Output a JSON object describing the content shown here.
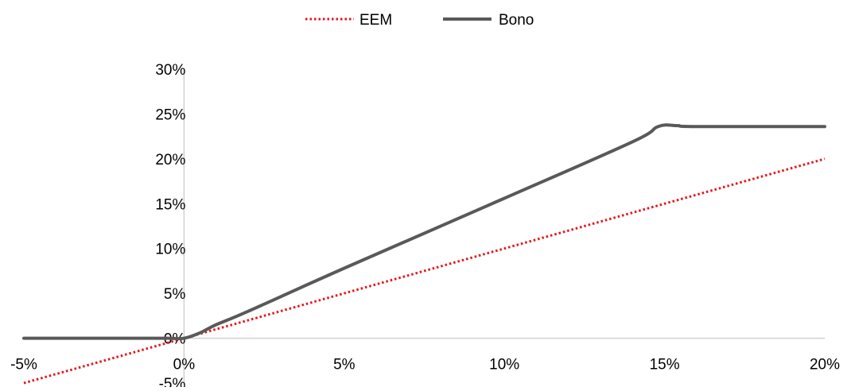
{
  "chart_data": {
    "type": "line",
    "title": "",
    "xlabel": "",
    "ylabel": "",
    "x_ticks": [
      "-5%",
      "0%",
      "5%",
      "10%",
      "15%",
      "20%"
    ],
    "y_ticks": [
      "-5%",
      "0%",
      "5%",
      "10%",
      "15%",
      "20%",
      "25%",
      "30%"
    ],
    "xlim": [
      -5,
      20
    ],
    "ylim": [
      -5,
      30
    ],
    "grid": false,
    "legend_position": "top-center",
    "series": [
      {
        "name": "EEM",
        "style": "dotted",
        "color": "#e8141c",
        "points": [
          [
            -5,
            -5
          ],
          [
            0,
            0
          ],
          [
            5,
            5
          ],
          [
            10,
            10
          ],
          [
            15,
            15
          ],
          [
            20,
            20
          ]
        ]
      },
      {
        "name": "Bono",
        "style": "solid",
        "color": "#595959",
        "points": [
          [
            -5,
            0
          ],
          [
            -1,
            0
          ],
          [
            -0.5,
            0
          ],
          [
            0,
            0
          ],
          [
            0.5,
            0.6
          ],
          [
            1,
            1.5
          ],
          [
            2,
            3
          ],
          [
            5,
            7.8
          ],
          [
            10,
            15.6
          ],
          [
            14,
            21.9
          ],
          [
            14.8,
            23.6
          ],
          [
            15.4,
            23.7
          ],
          [
            16,
            23.6
          ],
          [
            20,
            23.6
          ]
        ]
      }
    ]
  }
}
